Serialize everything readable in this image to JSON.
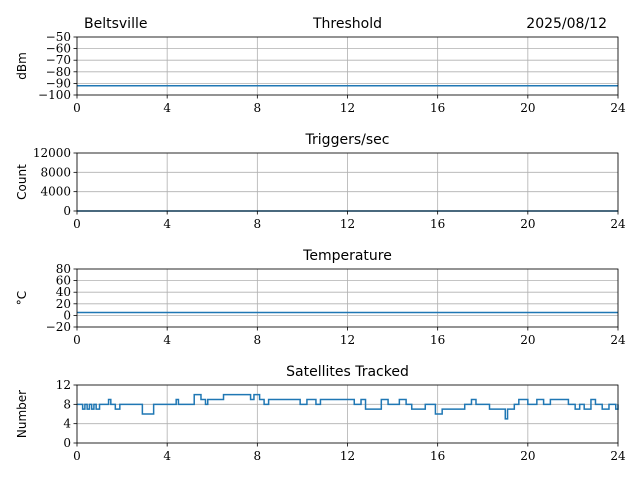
{
  "header": {
    "location": "Beltsville",
    "date": "2025/08/12"
  },
  "colors": {
    "series": "#1f77b4",
    "grid": "#b0b0b0",
    "axis": "#000000"
  },
  "chart_data": [
    {
      "type": "line",
      "title": "Threshold",
      "xlabel": "",
      "ylabel": "dBm",
      "xlim": [
        0,
        24
      ],
      "ylim": [
        -100,
        -50
      ],
      "xticks": [
        0,
        4,
        8,
        12,
        16,
        20,
        24
      ],
      "yticks": [
        -100,
        -90,
        -80,
        -70,
        -60,
        -50
      ],
      "ytick_labels": [
        "−100",
        "−90",
        "−80",
        "−70",
        "−60",
        "−50"
      ],
      "grid": true,
      "series": [
        {
          "x": [
            0,
            24
          ],
          "y": [
            -92,
            -92
          ]
        }
      ]
    },
    {
      "type": "line",
      "title": "Triggers/sec",
      "xlabel": "",
      "ylabel": "Count",
      "xlim": [
        0,
        24
      ],
      "ylim": [
        0,
        12000
      ],
      "xticks": [
        0,
        4,
        8,
        12,
        16,
        20,
        24
      ],
      "yticks": [
        0,
        4000,
        8000,
        12000
      ],
      "ytick_labels": [
        "0",
        "4000",
        "8000",
        "12000"
      ],
      "grid": true,
      "series": [
        {
          "x": [
            0,
            24
          ],
          "y": [
            0,
            0
          ]
        }
      ]
    },
    {
      "type": "line",
      "title": "Temperature",
      "xlabel": "",
      "ylabel": "°C",
      "xlim": [
        0,
        24
      ],
      "ylim": [
        -20,
        80
      ],
      "xticks": [
        0,
        4,
        8,
        12,
        16,
        20,
        24
      ],
      "yticks": [
        -20,
        0,
        20,
        40,
        60,
        80
      ],
      "ytick_labels": [
        "−20",
        "0",
        "20",
        "40",
        "60",
        "80"
      ],
      "grid": true,
      "series": [
        {
          "x": [
            0,
            24
          ],
          "y": [
            5,
            5
          ]
        }
      ]
    },
    {
      "type": "line",
      "title": "Satellites Tracked",
      "xlabel": "",
      "ylabel": "Number",
      "xlim": [
        0,
        24
      ],
      "ylim": [
        0,
        12
      ],
      "xticks": [
        0,
        4,
        8,
        12,
        16,
        20,
        24
      ],
      "yticks": [
        0,
        4,
        8,
        12
      ],
      "ytick_labels": [
        "0",
        "4",
        "8",
        "12"
      ],
      "grid": true,
      "series": [
        {
          "step": true,
          "x": [
            0,
            0.25,
            0.35,
            0.45,
            0.55,
            0.65,
            0.75,
            0.85,
            1.0,
            1.4,
            1.5,
            1.7,
            1.9,
            2.9,
            3.4,
            3.6,
            4.4,
            4.5,
            4.7,
            5.2,
            5.5,
            5.7,
            5.8,
            6.1,
            6.5,
            7.7,
            7.85,
            8.1,
            8.3,
            8.5,
            9.9,
            10.2,
            10.6,
            10.8,
            11.9,
            12.3,
            12.6,
            12.8,
            13.5,
            13.8,
            14.3,
            14.6,
            14.85,
            15.1,
            15.45,
            15.9,
            16.2,
            16.6,
            16.9,
            17.2,
            17.5,
            17.7,
            18.3,
            19.0,
            19.1,
            19.4,
            19.6,
            20.0,
            20.4,
            20.7,
            21.0,
            21.8,
            22.1,
            22.3,
            22.5,
            22.8,
            23.0,
            23.3,
            23.6,
            23.9,
            24.0
          ],
          "y": [
            8,
            7,
            8,
            7,
            8,
            7,
            8,
            7,
            8,
            9,
            8,
            7,
            8,
            6,
            8,
            8,
            9,
            8,
            8,
            10,
            9,
            8,
            9,
            9,
            10,
            9,
            10,
            9,
            8,
            9,
            8,
            9,
            8,
            9,
            9,
            8,
            9,
            7,
            9,
            8,
            9,
            8,
            7,
            7,
            8,
            6,
            7,
            7,
            7,
            8,
            9,
            8,
            7,
            5,
            7,
            8,
            9,
            8,
            9,
            8,
            9,
            8,
            7,
            8,
            7,
            9,
            8,
            7,
            8,
            7,
            8
          ]
        }
      ]
    }
  ]
}
